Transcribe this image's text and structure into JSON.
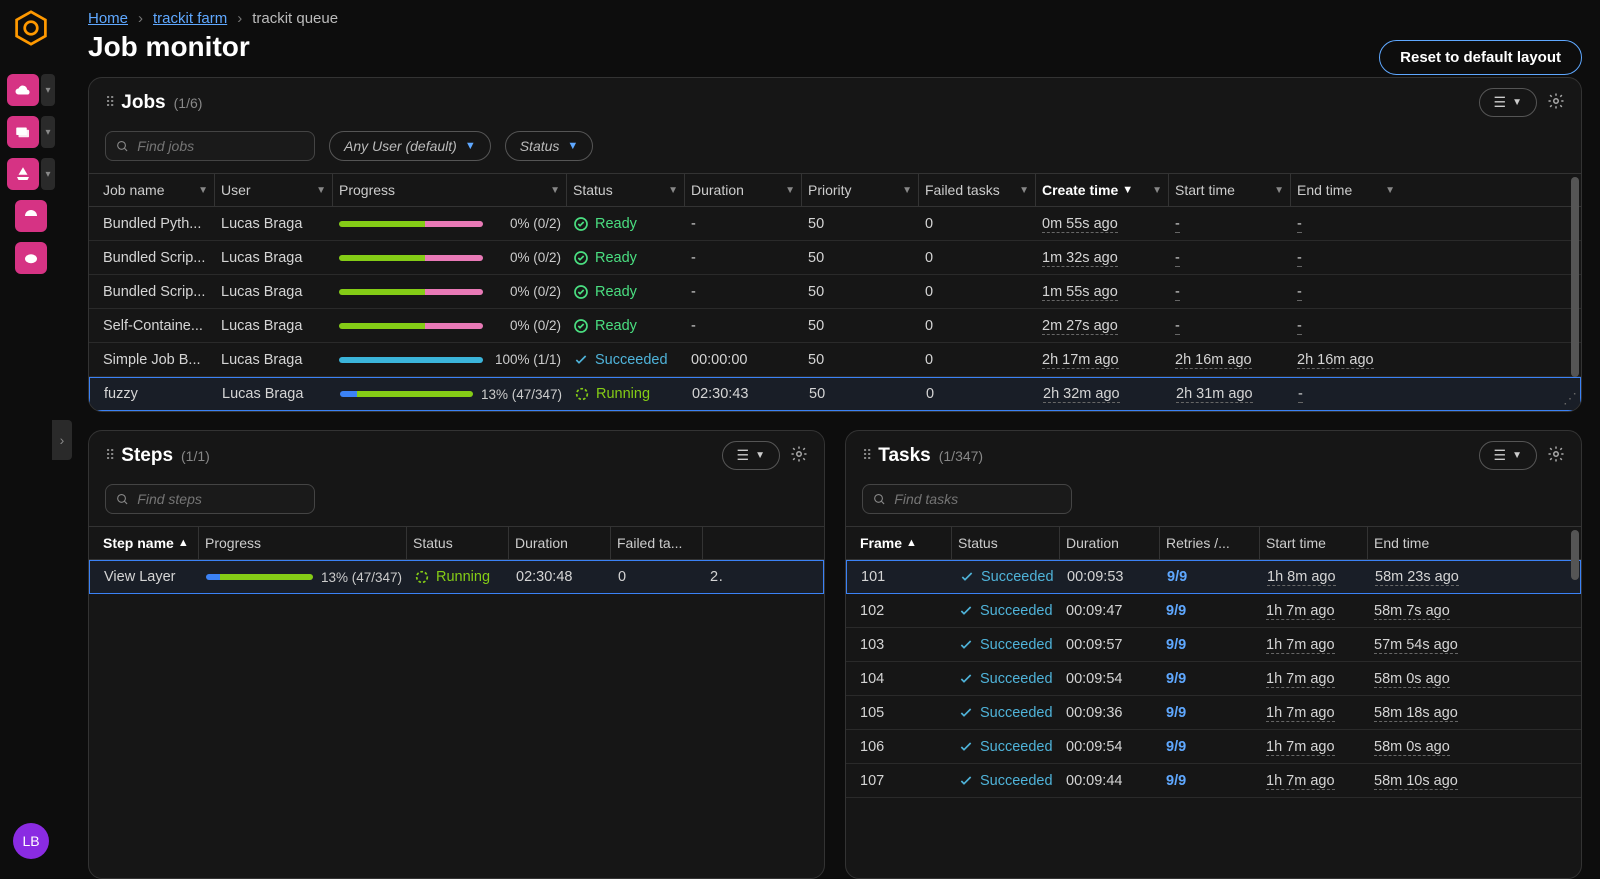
{
  "colors": {
    "accent_blue": "#5fa8ff",
    "pink": "#d63384",
    "ready_green": "#4ade80",
    "running_green": "#84cc16",
    "succeeded_blue": "#4fb3d9",
    "progress_ready": "#e879b6",
    "progress_running_done": "#3b82f6",
    "progress_running_remain": "#84cc16",
    "progress_succeeded": "#3bb4d9"
  },
  "breadcrumb": {
    "home": "Home",
    "farm": "trackit farm",
    "queue": "trackit queue"
  },
  "page_title": "Job monitor",
  "reset_button": "Reset to default layout",
  "avatar_initials": "LB",
  "jobs_panel": {
    "title": "Jobs",
    "count": "(1/6)",
    "search_placeholder": "Find jobs",
    "user_filter": "Any User (default)",
    "status_filter": "Status",
    "columns": [
      "Job name",
      "User",
      "Progress",
      "Status",
      "Duration",
      "Priority",
      "Failed tasks",
      "Create time",
      "Start time",
      "End time"
    ],
    "sort_column": "Create time",
    "rows": [
      {
        "name": "Bundled Pyth...",
        "user": "Lucas Braga",
        "progress_pct": 0,
        "progress_text": "0% (0/2)",
        "status": "Ready",
        "duration": "-",
        "priority": "50",
        "failed": "0",
        "create": "0m 55s ago",
        "start": "-",
        "end": "-",
        "selected": false,
        "bar_style": "ready"
      },
      {
        "name": "Bundled Scrip...",
        "user": "Lucas Braga",
        "progress_pct": 0,
        "progress_text": "0% (0/2)",
        "status": "Ready",
        "duration": "-",
        "priority": "50",
        "failed": "0",
        "create": "1m 32s ago",
        "start": "-",
        "end": "-",
        "selected": false,
        "bar_style": "ready"
      },
      {
        "name": "Bundled Scrip...",
        "user": "Lucas Braga",
        "progress_pct": 0,
        "progress_text": "0% (0/2)",
        "status": "Ready",
        "duration": "-",
        "priority": "50",
        "failed": "0",
        "create": "1m 55s ago",
        "start": "-",
        "end": "-",
        "selected": false,
        "bar_style": "ready"
      },
      {
        "name": "Self-Containe...",
        "user": "Lucas Braga",
        "progress_pct": 0,
        "progress_text": "0% (0/2)",
        "status": "Ready",
        "duration": "-",
        "priority": "50",
        "failed": "0",
        "create": "2m 27s ago",
        "start": "-",
        "end": "-",
        "selected": false,
        "bar_style": "ready"
      },
      {
        "name": "Simple Job B...",
        "user": "Lucas Braga",
        "progress_pct": 100,
        "progress_text": "100% (1/1)",
        "status": "Succeeded",
        "duration": "00:00:00",
        "priority": "50",
        "failed": "0",
        "create": "2h 17m ago",
        "start": "2h 16m ago",
        "end": "2h 16m ago",
        "selected": false,
        "bar_style": "succeeded"
      },
      {
        "name": "fuzzy",
        "user": "Lucas Braga",
        "progress_pct": 13,
        "progress_text": "13% (47/347)",
        "status": "Running",
        "duration": "02:30:43",
        "priority": "50",
        "failed": "0",
        "create": "2h 32m ago",
        "start": "2h 31m ago",
        "end": "-",
        "selected": true,
        "bar_style": "running"
      }
    ]
  },
  "steps_panel": {
    "title": "Steps",
    "count": "(1/1)",
    "search_placeholder": "Find steps",
    "columns": [
      "Step name",
      "Progress",
      "Status",
      "Duration",
      "Failed ta...",
      ""
    ],
    "sort_column": "Step name",
    "rows": [
      {
        "name": "View Layer",
        "progress_pct": 13,
        "progress_text": "13% (47/347)",
        "status": "Running",
        "duration": "02:30:48",
        "failed": "0",
        "extra": "2",
        "selected": true,
        "bar_style": "running"
      }
    ]
  },
  "tasks_panel": {
    "title": "Tasks",
    "count": "(1/347)",
    "search_placeholder": "Find tasks",
    "columns": [
      "Frame",
      "Status",
      "Duration",
      "Retries /...",
      "Start time",
      "End time"
    ],
    "sort_column": "Frame",
    "rows": [
      {
        "frame": "101",
        "status": "Succeeded",
        "duration": "00:09:53",
        "retries": "9/9",
        "start": "1h 8m ago",
        "end": "58m 23s ago",
        "selected": true
      },
      {
        "frame": "102",
        "status": "Succeeded",
        "duration": "00:09:47",
        "retries": "9/9",
        "start": "1h 7m ago",
        "end": "58m 7s ago",
        "selected": false
      },
      {
        "frame": "103",
        "status": "Succeeded",
        "duration": "00:09:57",
        "retries": "9/9",
        "start": "1h 7m ago",
        "end": "57m 54s ago",
        "selected": false
      },
      {
        "frame": "104",
        "status": "Succeeded",
        "duration": "00:09:54",
        "retries": "9/9",
        "start": "1h 7m ago",
        "end": "58m 0s ago",
        "selected": false
      },
      {
        "frame": "105",
        "status": "Succeeded",
        "duration": "00:09:36",
        "retries": "9/9",
        "start": "1h 7m ago",
        "end": "58m 18s ago",
        "selected": false
      },
      {
        "frame": "106",
        "status": "Succeeded",
        "duration": "00:09:54",
        "retries": "9/9",
        "start": "1h 7m ago",
        "end": "58m 0s ago",
        "selected": false
      },
      {
        "frame": "107",
        "status": "Succeeded",
        "duration": "00:09:44",
        "retries": "9/9",
        "start": "1h 7m ago",
        "end": "58m 10s ago",
        "selected": false
      }
    ]
  }
}
